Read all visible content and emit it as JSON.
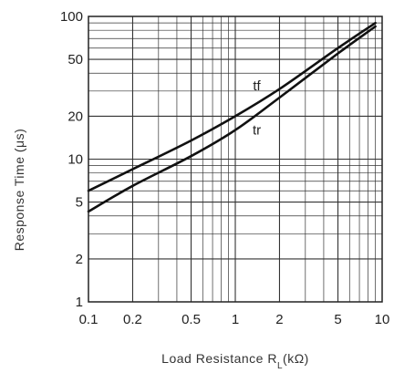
{
  "chart_data": {
    "type": "line",
    "title": "",
    "xlabel": "Load Resistance Rₗ(kΩ)",
    "xlabel_main": "Load Resistance R",
    "xlabel_sub": "L",
    "xlabel_unit": "(kΩ)",
    "ylabel": "Response Time (μs)",
    "x_scale": "log",
    "y_scale": "log",
    "xlim": [
      0.1,
      10
    ],
    "ylim": [
      1,
      100
    ],
    "x_ticks": [
      0.1,
      0.2,
      0.5,
      1,
      2,
      5,
      10
    ],
    "x_tick_labels": [
      "0.1",
      "0.2",
      "0.5",
      "1",
      "2",
      "5",
      "10"
    ],
    "y_ticks": [
      1,
      2,
      5,
      10,
      20,
      50,
      100
    ],
    "y_tick_labels": [
      "1",
      "2",
      "5",
      "10",
      "20",
      "50",
      "100"
    ],
    "grid": true,
    "series": [
      {
        "name": "tf",
        "x": [
          0.1,
          0.2,
          0.5,
          1,
          2,
          5,
          9
        ],
        "y": [
          6.0,
          8.5,
          13.5,
          20,
          31,
          60,
          90
        ]
      },
      {
        "name": "tr",
        "x": [
          0.1,
          0.2,
          0.5,
          1,
          2,
          5,
          9
        ],
        "y": [
          4.3,
          6.5,
          10.5,
          16,
          27,
          55,
          85
        ]
      }
    ]
  }
}
